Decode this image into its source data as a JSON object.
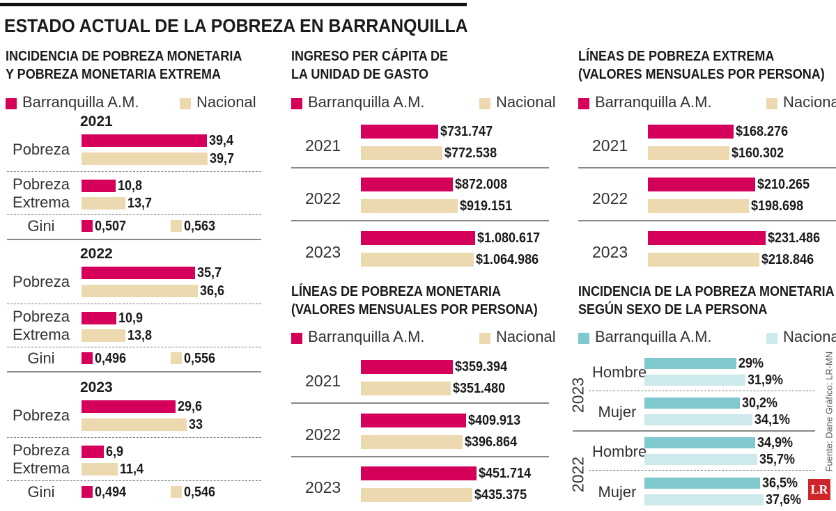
{
  "title": "ESTADO ACTUAL DE LA POBREZA EN BARRANQUILLA",
  "source": "Fuente: Dane   Gráfico: LR-MN",
  "logo": "LR",
  "colors": {
    "barranquilla": "#d4005a",
    "nacional": "#ecd9b0",
    "barranquilla_sexo": "#7fc8ce",
    "nacional_sexo": "#cde9ec"
  },
  "chart_data": [
    {
      "type": "bar",
      "title_lines": [
        "INCIDENCIA DE POBREZA MONETARIA",
        "Y POBREZA MONETARIA EXTREMA"
      ],
      "legend": [
        "Barranquilla A.M.",
        "Nacional"
      ],
      "groups": [
        {
          "year": "2021",
          "rows": [
            {
              "label": [
                "Pobreza"
              ],
              "values": [
                39.4,
                39.7
              ],
              "labels": [
                "39,4",
                "39,7"
              ]
            },
            {
              "label": [
                "Pobreza",
                "Extrema"
              ],
              "values": [
                10.8,
                13.7
              ],
              "labels": [
                "10,8",
                "13,7"
              ]
            }
          ],
          "gini": {
            "label": "Gini",
            "values": [
              0.507,
              0.563
            ],
            "labels": [
              "0,507",
              "0,563"
            ]
          }
        },
        {
          "year": "2022",
          "rows": [
            {
              "label": [
                "Pobreza"
              ],
              "values": [
                35.7,
                36.6
              ],
              "labels": [
                "35,7",
                "36,6"
              ]
            },
            {
              "label": [
                "Pobreza",
                "Extrema"
              ],
              "values": [
                10.9,
                13.8
              ],
              "labels": [
                "10,9",
                "13,8"
              ]
            }
          ],
          "gini": {
            "label": "Gini",
            "values": [
              0.496,
              0.556
            ],
            "labels": [
              "0,496",
              "0,556"
            ]
          }
        },
        {
          "year": "2023",
          "rows": [
            {
              "label": [
                "Pobreza"
              ],
              "values": [
                29.6,
                33
              ],
              "labels": [
                "29,6",
                "33"
              ]
            },
            {
              "label": [
                "Pobreza",
                "Extrema"
              ],
              "values": [
                6.9,
                11.4
              ],
              "labels": [
                "6,9",
                "11,4"
              ]
            }
          ],
          "gini": {
            "label": "Gini",
            "values": [
              0.494,
              0.546
            ],
            "labels": [
              "0,494",
              "0,546"
            ]
          }
        }
      ]
    },
    {
      "type": "bar",
      "title_lines": [
        "INGRESO PER CÁPITA DE",
        "LA UNIDAD DE GASTO"
      ],
      "legend": [
        "Barranquilla A.M.",
        "Nacional"
      ],
      "groups": [
        {
          "year": "2021",
          "values": [
            731747,
            772538
          ],
          "labels": [
            "$731.747",
            "$772.538"
          ]
        },
        {
          "year": "2022",
          "values": [
            872008,
            919151
          ],
          "labels": [
            "$872.008",
            "$919.151"
          ]
        },
        {
          "year": "2023",
          "values": [
            1080617,
            1064986
          ],
          "labels": [
            "$1.080.617",
            "$1.064.986"
          ]
        }
      ]
    },
    {
      "type": "bar",
      "title_lines": [
        "LÍNEAS DE POBREZA EXTREMA",
        "(VALORES MENSUALES POR PERSONA)"
      ],
      "legend": [
        "Barranquilla A.M.",
        "Nacional"
      ],
      "groups": [
        {
          "year": "2021",
          "values": [
            168276,
            160302
          ],
          "labels": [
            "$168.276",
            "$160.302"
          ]
        },
        {
          "year": "2022",
          "values": [
            210265,
            198698
          ],
          "labels": [
            "$210.265",
            "$198.698"
          ]
        },
        {
          "year": "2023",
          "values": [
            231486,
            218846
          ],
          "labels": [
            "$231.486",
            "$218.846"
          ]
        }
      ]
    },
    {
      "type": "bar",
      "title_lines": [
        "LÍNEAS DE POBREZA MONETARIA",
        "(VALORES MENSUALES POR PERSONA)"
      ],
      "legend": [
        "Barranquilla A.M.",
        "Nacional"
      ],
      "groups": [
        {
          "year": "2021",
          "values": [
            359394,
            351480
          ],
          "labels": [
            "$359.394",
            "$351.480"
          ]
        },
        {
          "year": "2022",
          "values": [
            409913,
            396864
          ],
          "labels": [
            "$409.913",
            "$396.864"
          ]
        },
        {
          "year": "2023",
          "values": [
            451714,
            435375
          ],
          "labels": [
            "$451.714",
            "$435.375"
          ]
        }
      ]
    },
    {
      "type": "bar",
      "title_lines": [
        "INCIDENCIA DE LA POBREZA MONETARIA",
        "SEGÚN SEXO DE LA PERSONA"
      ],
      "legend": [
        "Barranquilla A.M.",
        "Nacional"
      ],
      "groups": [
        {
          "year": "2023",
          "rows": [
            {
              "label": "Hombre",
              "values": [
                29,
                31.9
              ],
              "labels": [
                "29%",
                "31,9%"
              ]
            },
            {
              "label": "Mujer",
              "values": [
                30.2,
                34.1
              ],
              "labels": [
                "30,2%",
                "34,1%"
              ]
            }
          ]
        },
        {
          "year": "2022",
          "rows": [
            {
              "label": "Hombre",
              "values": [
                34.9,
                35.7
              ],
              "labels": [
                "34,9%",
                "35,7%"
              ]
            },
            {
              "label": "Mujer",
              "values": [
                36.5,
                37.6
              ],
              "labels": [
                "36,5%",
                "37,6%"
              ]
            }
          ]
        }
      ]
    }
  ]
}
